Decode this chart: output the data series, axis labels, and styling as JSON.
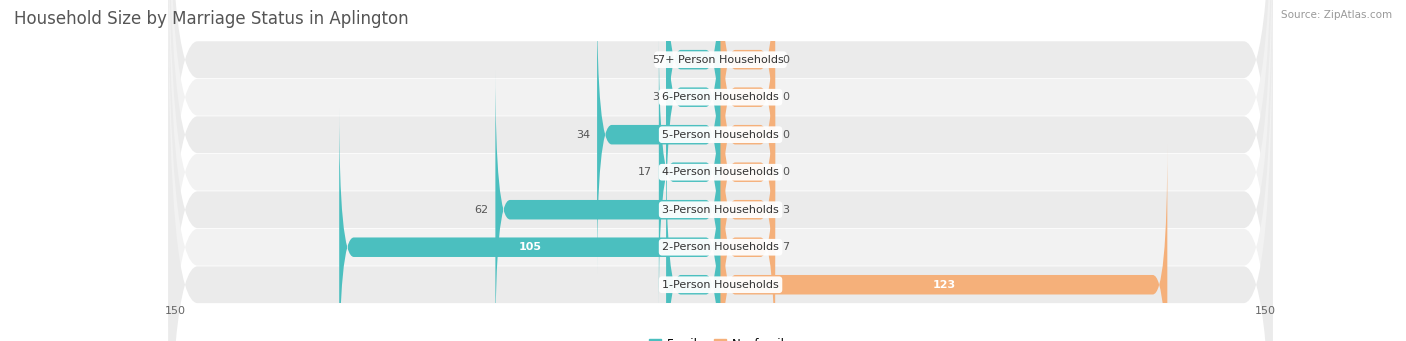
{
  "title": "Household Size by Marriage Status in Aplington",
  "source": "Source: ZipAtlas.com",
  "categories": [
    "7+ Person Households",
    "6-Person Households",
    "5-Person Households",
    "4-Person Households",
    "3-Person Households",
    "2-Person Households",
    "1-Person Households"
  ],
  "family_values": [
    5,
    3,
    34,
    17,
    62,
    105,
    0
  ],
  "nonfamily_values": [
    0,
    0,
    0,
    0,
    3,
    7,
    123
  ],
  "family_color": "#4BBFBF",
  "nonfamily_color": "#F5B07A",
  "xlim": 150,
  "bar_height": 0.52,
  "title_fontsize": 12,
  "label_fontsize": 8,
  "tick_fontsize": 8,
  "source_fontsize": 7.5,
  "min_bar_stub": 15
}
